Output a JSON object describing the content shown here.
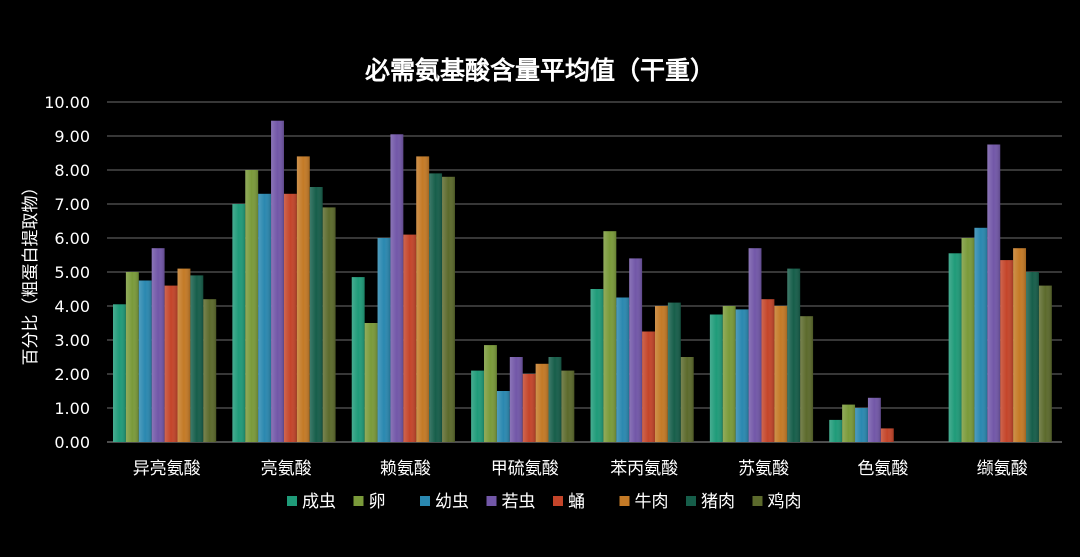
{
  "chart_data": {
    "type": "bar",
    "title": "必需氨基酸含量平均值（干重）",
    "xlabel": "",
    "ylabel": "百分比（粗蛋白提取物）",
    "ylim": [
      0,
      10
    ],
    "ytick_step": 1,
    "y_tick_labels": [
      "0.00",
      "1.00",
      "2.00",
      "3.00",
      "4.00",
      "5.00",
      "6.00",
      "7.00",
      "8.00",
      "9.00",
      "10.00"
    ],
    "grid": true,
    "legend_position": "bottom",
    "categories": [
      "异亮氨酸",
      "亮氨酸",
      "赖氨酸",
      "甲硫氨酸",
      "苯丙氨酸",
      "苏氨酸",
      "色氨酸",
      "缬氨酸"
    ],
    "series": [
      {
        "name": "成虫",
        "color": "#1f9b79",
        "values": [
          4.05,
          7.0,
          4.85,
          2.1,
          4.5,
          3.75,
          0.65,
          5.55
        ]
      },
      {
        "name": "卵",
        "color": "#7a9a3a",
        "values": [
          5.0,
          8.0,
          3.5,
          2.85,
          6.2,
          4.0,
          1.1,
          6.0
        ]
      },
      {
        "name": "幼虫",
        "color": "#2a88b0",
        "values": [
          4.75,
          7.3,
          6.0,
          1.5,
          4.25,
          3.9,
          1.0,
          6.3
        ]
      },
      {
        "name": "若虫",
        "color": "#7257a8",
        "values": [
          5.7,
          9.45,
          9.05,
          2.5,
          5.4,
          5.7,
          1.3,
          8.75
        ]
      },
      {
        "name": "蛹",
        "color": "#c4452a",
        "values": [
          4.6,
          7.3,
          6.1,
          2.0,
          3.25,
          4.2,
          0.4,
          5.35
        ]
      },
      {
        "name": "牛肉",
        "color": "#c47a26",
        "values": [
          5.1,
          8.4,
          8.4,
          2.3,
          4.0,
          4.0,
          0,
          5.7
        ]
      },
      {
        "name": "猪肉",
        "color": "#165e4a",
        "values": [
          4.9,
          7.5,
          7.9,
          2.5,
          4.1,
          5.1,
          0,
          5.0
        ]
      },
      {
        "name": "鸡肉",
        "color": "#5c6a2c",
        "values": [
          4.2,
          6.9,
          7.8,
          2.1,
          2.5,
          3.7,
          0,
          4.6
        ]
      }
    ]
  }
}
